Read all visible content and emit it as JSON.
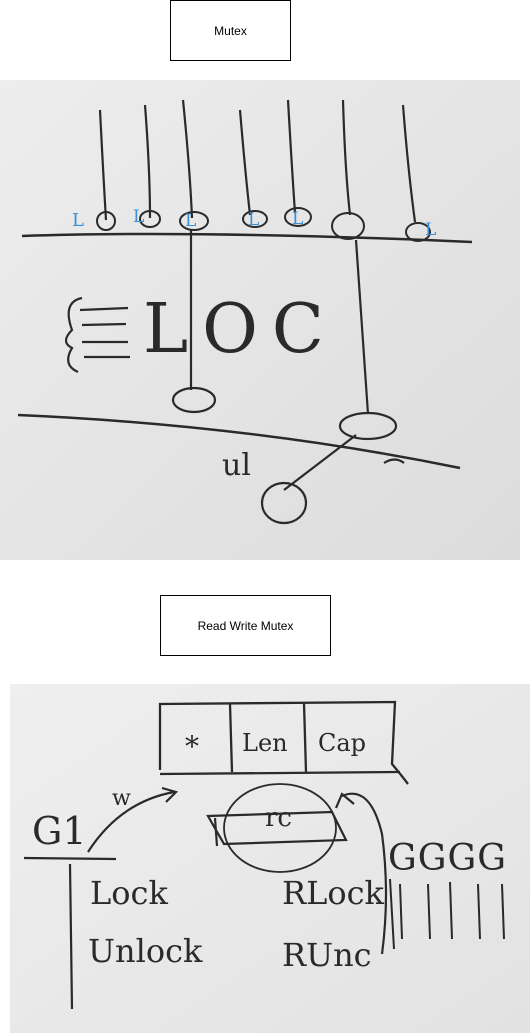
{
  "sections": [
    {
      "title": "Mutex"
    },
    {
      "title": "Read Write Mutex"
    }
  ],
  "mutex_board": {
    "marks": [
      "L",
      "L",
      "L",
      "L",
      "L",
      "L"
    ],
    "loc_text": "LOC",
    "handwritten_label": "ul"
  },
  "rw_board": {
    "header_cells": [
      "*",
      "Len",
      "Cap"
    ],
    "goroutine_label": "G1",
    "write_label": "w",
    "rc_label": "rc",
    "lock_label": "Lock",
    "unlock_label": "Unlock",
    "rlock_label": "RLock",
    "runlock_label": "RUnc",
    "g_group_label": "GGGG",
    "colors": {
      "board": "#e9e9e9",
      "ink": "#2a2a2a",
      "accent": "#3a8fd6"
    }
  }
}
